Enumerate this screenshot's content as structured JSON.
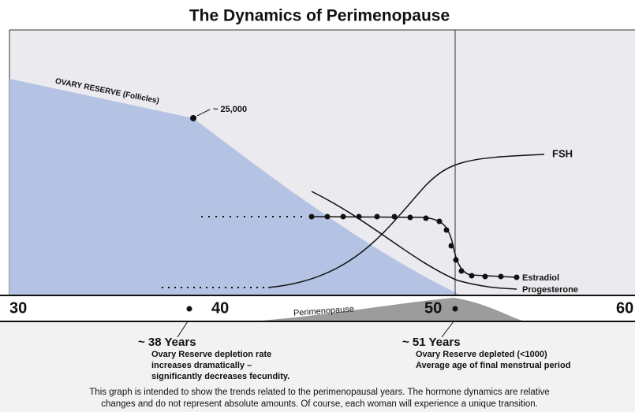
{
  "title": "The Dynamics of Perimenopause",
  "curves": {
    "ovary_reserve": "OVARY RESERVE (Follicles)",
    "follicle_count": "~ 25,000",
    "fsh": "FSH",
    "estradiol": "Estradiol",
    "progesterone": "Progesterone"
  },
  "axis": {
    "ticks": [
      "30",
      "40",
      "50",
      "60"
    ],
    "band": "Perimenopause"
  },
  "annotations": [
    {
      "heading": "~ 38 Years",
      "lines": [
        "Ovary Reserve depletion rate",
        "increases dramatically –",
        "significantly decreases fecundity."
      ]
    },
    {
      "heading": "~ 51 Years",
      "lines": [
        "Ovary Reserve depleted (<1000)",
        "Average age of final menstrual period"
      ]
    }
  ],
  "footnote": [
    "This graph is intended to show the trends related to the perimenopausal years. The hormone dynamics are relative",
    "changes and do not represent absolute amounts. Of course, each woman will experience a unique transition."
  ]
}
